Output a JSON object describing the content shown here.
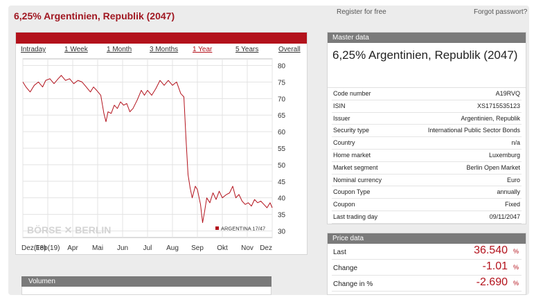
{
  "header": {
    "title": "6,25% Argentinien, Republik (2047)",
    "register_link": "Register for free",
    "forgot_link": "Forgot passwort?"
  },
  "chart_tabs": [
    {
      "label": "Intraday",
      "active": false
    },
    {
      "label": "1 Week",
      "active": false
    },
    {
      "label": "1 Month",
      "active": false
    },
    {
      "label": "3 Months",
      "active": false
    },
    {
      "label": "1 Year",
      "active": true
    },
    {
      "label": "5 Years",
      "active": false
    },
    {
      "label": "Overall",
      "active": false
    }
  ],
  "chart_data": {
    "type": "line",
    "x_ticks": [
      "Dez(18)",
      "Feb(19)",
      "Apr",
      "Mai",
      "Jun",
      "Jul",
      "Aug",
      "Sep",
      "Okt",
      "Nov",
      "Dez"
    ],
    "y_ticks": [
      80,
      75,
      70,
      65,
      60,
      55,
      50,
      45,
      40,
      35,
      30
    ],
    "ylim": [
      28,
      82
    ],
    "xlim": [
      0,
      12
    ],
    "grid": true,
    "watermark": "BÖRSE ✕ BERLIN",
    "legend": {
      "label": "ARGENTINA 17/47",
      "position": "bottom-right"
    },
    "series": [
      {
        "name": "ARGENTINA 17/47",
        "color": "#b3121c",
        "points": [
          [
            0.0,
            75.0
          ],
          [
            0.15,
            73.5
          ],
          [
            0.35,
            72.0
          ],
          [
            0.55,
            74.0
          ],
          [
            0.75,
            75.0
          ],
          [
            0.95,
            73.5
          ],
          [
            1.1,
            75.5
          ],
          [
            1.3,
            76.0
          ],
          [
            1.5,
            74.5
          ],
          [
            1.7,
            76.0
          ],
          [
            1.85,
            77.0
          ],
          [
            2.05,
            75.5
          ],
          [
            2.25,
            76.0
          ],
          [
            2.45,
            74.5
          ],
          [
            2.65,
            75.5
          ],
          [
            2.85,
            75.0
          ],
          [
            3.05,
            73.5
          ],
          [
            3.25,
            72.0
          ],
          [
            3.4,
            73.5
          ],
          [
            3.55,
            72.5
          ],
          [
            3.75,
            71.0
          ],
          [
            3.9,
            65.5
          ],
          [
            4.0,
            63.0
          ],
          [
            4.1,
            66.0
          ],
          [
            4.25,
            65.5
          ],
          [
            4.4,
            68.0
          ],
          [
            4.55,
            67.0
          ],
          [
            4.7,
            69.0
          ],
          [
            4.85,
            68.0
          ],
          [
            5.0,
            68.5
          ],
          [
            5.15,
            66.0
          ],
          [
            5.3,
            67.0
          ],
          [
            5.5,
            69.5
          ],
          [
            5.7,
            72.5
          ],
          [
            5.85,
            71.0
          ],
          [
            6.0,
            72.5
          ],
          [
            6.2,
            71.0
          ],
          [
            6.4,
            73.0
          ],
          [
            6.6,
            75.5
          ],
          [
            6.8,
            74.0
          ],
          [
            7.0,
            75.5
          ],
          [
            7.2,
            74.0
          ],
          [
            7.4,
            75.0
          ],
          [
            7.6,
            71.5
          ],
          [
            7.75,
            70.5
          ],
          [
            7.85,
            58.0
          ],
          [
            7.95,
            47.0
          ],
          [
            8.05,
            43.0
          ],
          [
            8.15,
            40.0
          ],
          [
            8.3,
            43.5
          ],
          [
            8.4,
            42.5
          ],
          [
            8.55,
            38.0
          ],
          [
            8.65,
            32.5
          ],
          [
            8.75,
            36.0
          ],
          [
            8.85,
            40.0
          ],
          [
            9.0,
            38.5
          ],
          [
            9.15,
            41.5
          ],
          [
            9.3,
            39.5
          ],
          [
            9.45,
            42.0
          ],
          [
            9.6,
            40.0
          ],
          [
            9.8,
            41.0
          ],
          [
            9.95,
            41.5
          ],
          [
            10.1,
            43.5
          ],
          [
            10.25,
            40.0
          ],
          [
            10.4,
            41.0
          ],
          [
            10.55,
            39.0
          ],
          [
            10.7,
            38.0
          ],
          [
            10.85,
            38.5
          ],
          [
            11.0,
            37.5
          ],
          [
            11.15,
            39.5
          ],
          [
            11.3,
            38.5
          ],
          [
            11.45,
            39.0
          ],
          [
            11.6,
            38.0
          ],
          [
            11.75,
            37.0
          ],
          [
            11.9,
            38.5
          ],
          [
            12.0,
            37.0
          ]
        ]
      }
    ]
  },
  "volume": {
    "label": "Volumen"
  },
  "master_data": {
    "header": "Master data",
    "name": "6,25% Argentinien, Republik (2047)",
    "rows": [
      {
        "label": "Code number",
        "value": "A19RVQ"
      },
      {
        "label": "ISIN",
        "value": "XS1715535123"
      },
      {
        "label": "Issuer",
        "value": "Argentinien, Republik"
      },
      {
        "label": "Security type",
        "value": "International Public Sector Bonds"
      },
      {
        "label": "Country",
        "value": "n/a"
      },
      {
        "label": "Home market",
        "value": "Luxemburg"
      },
      {
        "label": "Market segment",
        "value": "Berlin Open Market"
      },
      {
        "label": "Nominal currency",
        "value": "Euro"
      },
      {
        "label": "Coupon Type",
        "value": "annually"
      },
      {
        "label": "Coupon",
        "value": "Fixed"
      },
      {
        "label": "Last trading day",
        "value": "09/11/2047"
      }
    ]
  },
  "price_data": {
    "header": "Price data",
    "rows": [
      {
        "label": "Last",
        "value": "36.540",
        "unit": "%"
      },
      {
        "label": "Change",
        "value": "-1.01",
        "unit": "%"
      },
      {
        "label": "Change in %",
        "value": "-2.690",
        "unit": "%"
      }
    ]
  },
  "colors": {
    "accent": "#b3121c",
    "panel_header": "#7a7a7a"
  }
}
